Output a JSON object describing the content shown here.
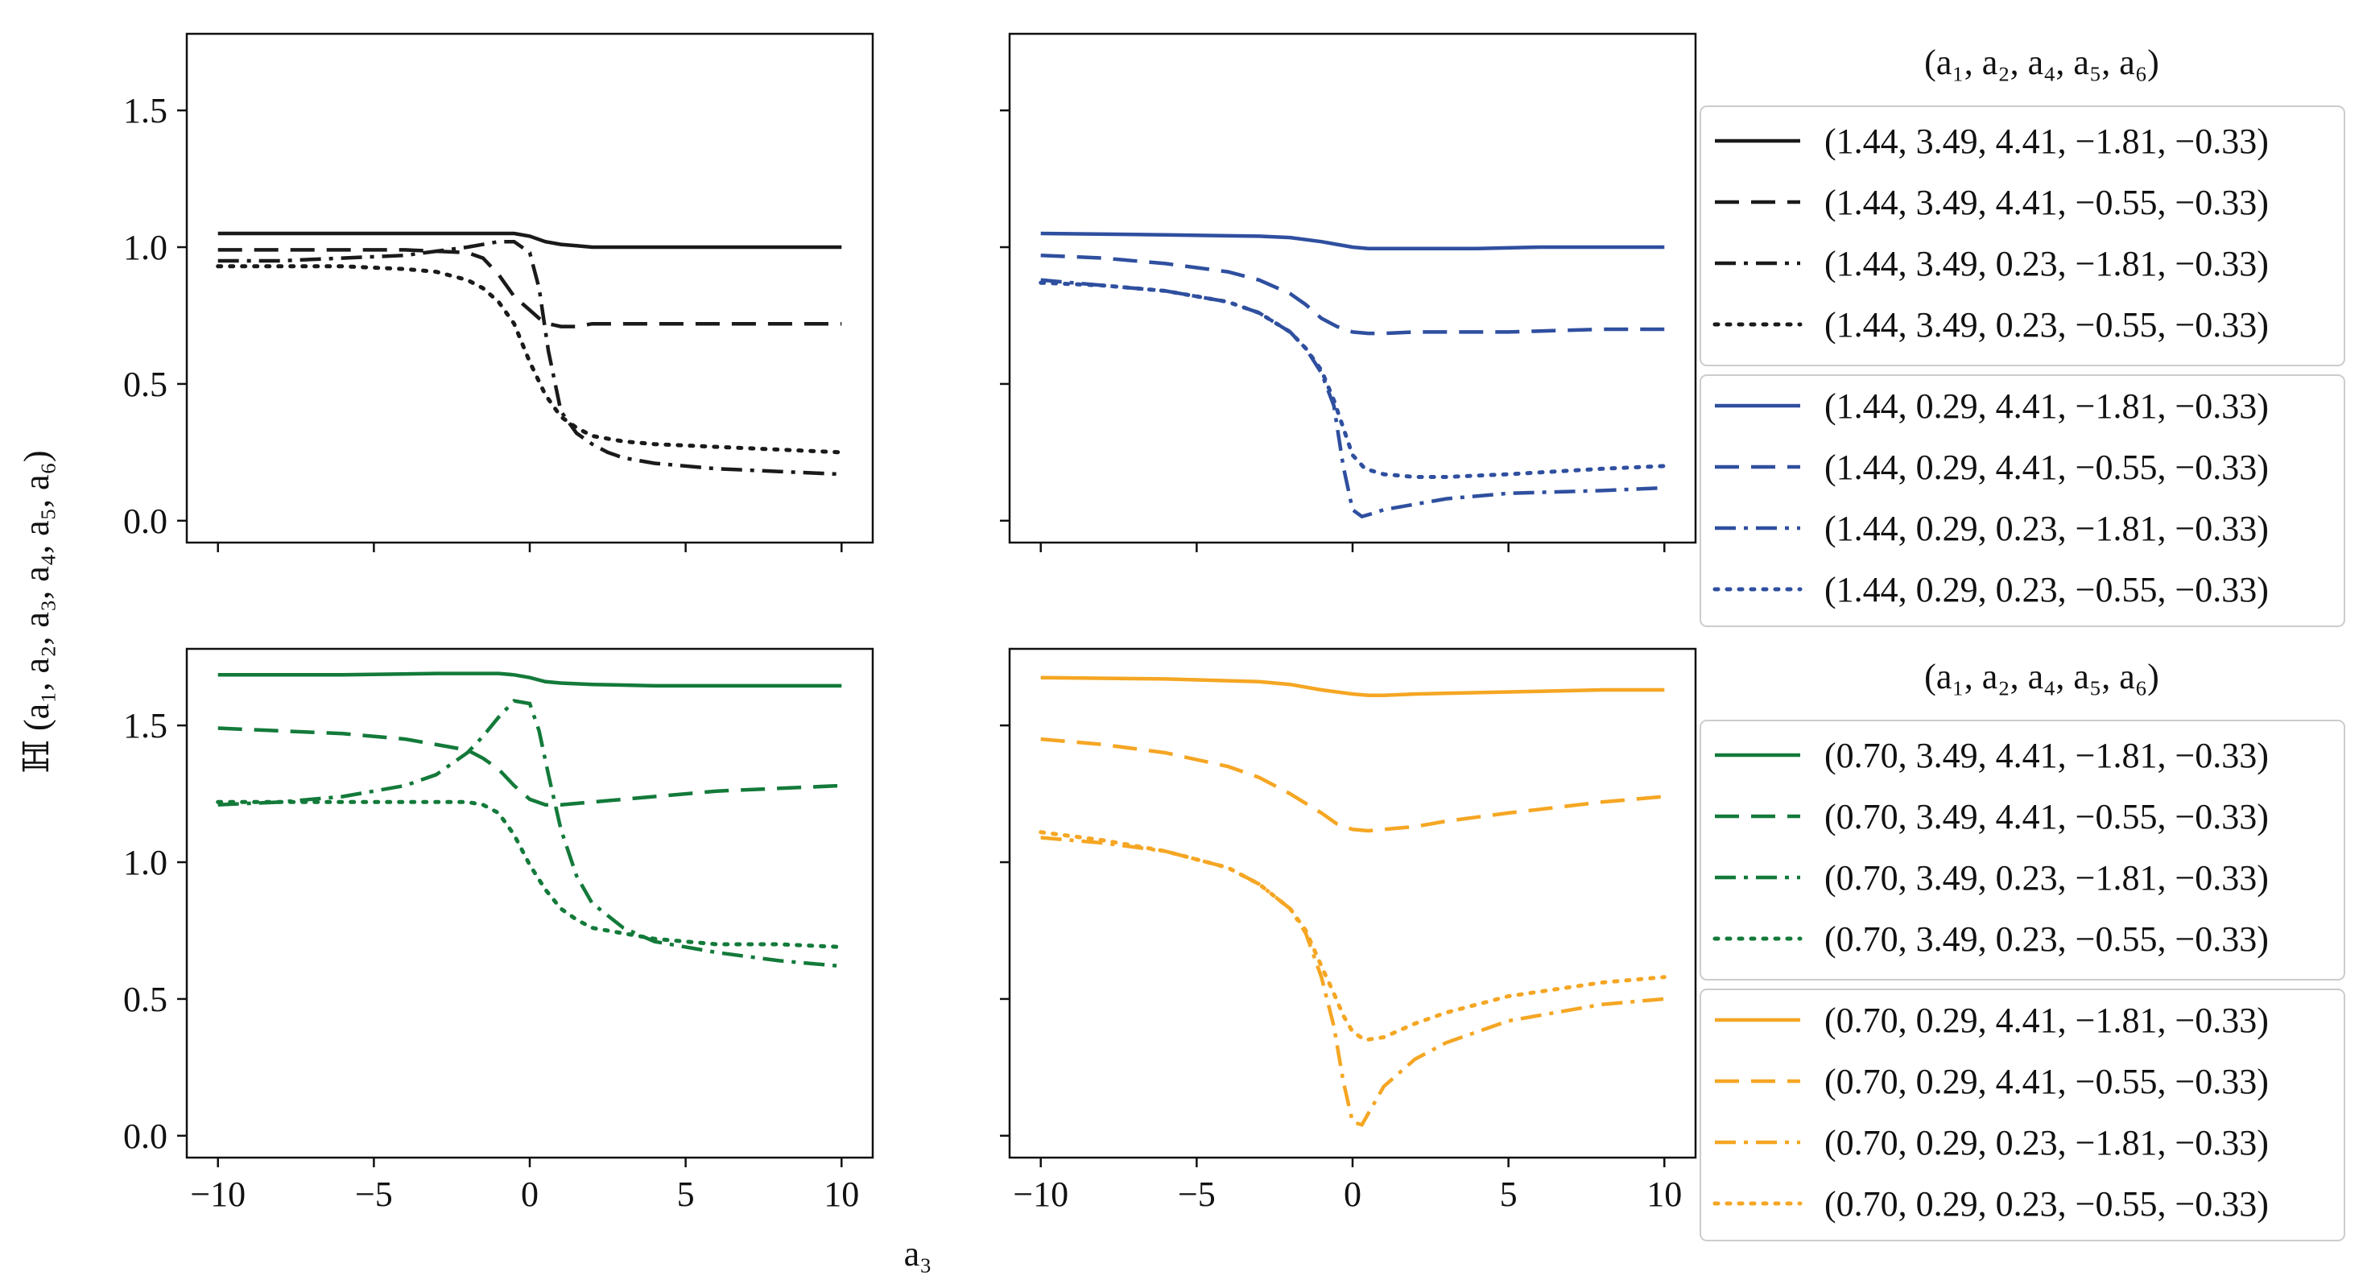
{
  "chart_data": {
    "type": "line",
    "ylabel": "ℍ (a₁, a₂, a₃, a₄, a₅, a₆)",
    "xlabel": "a₃",
    "xlim": [
      -11,
      11
    ],
    "ylim": [
      -0.08,
      1.78
    ],
    "xticks": [
      -10,
      -5,
      0,
      5,
      10
    ],
    "xtick_labels": [
      "−10",
      "−5",
      "0",
      "5",
      "10"
    ],
    "yticks": [
      0.0,
      0.5,
      1.0,
      1.5
    ],
    "ytick_labels": [
      "0.0",
      "0.5",
      "1.0",
      "1.5"
    ],
    "legend_title_top": "(a₁, a₂, a₄, a₅, a₆)",
    "legend_title_bottom": "(a₁, a₂, a₄, a₅, a₆)",
    "panels": [
      {
        "name": "top-left",
        "color": "#1a1a1a",
        "series": [
          {
            "name": "(1.44, 3.49, 4.41, −1.81, −0.33)",
            "style": "solid",
            "x": [
              -10,
              -8,
              -6,
              -4,
              -2,
              -1,
              -0.5,
              0,
              0.5,
              1,
              1.5,
              2,
              3,
              5,
              8,
              10
            ],
            "y": [
              1.05,
              1.05,
              1.05,
              1.05,
              1.05,
              1.05,
              1.05,
              1.04,
              1.02,
              1.01,
              1.005,
              1.0,
              1.0,
              1.0,
              1.0,
              1.0
            ]
          },
          {
            "name": "(1.44, 3.49, 4.41, −0.55, −0.33)",
            "style": "dashed",
            "x": [
              -10,
              -8,
              -6,
              -4,
              -2,
              -1.5,
              -1,
              -0.5,
              0,
              0.3,
              0.6,
              1,
              1.5,
              2,
              3,
              5,
              8,
              10
            ],
            "y": [
              0.99,
              0.99,
              0.99,
              0.99,
              0.98,
              0.96,
              0.9,
              0.82,
              0.77,
              0.74,
              0.72,
              0.71,
              0.71,
              0.72,
              0.72,
              0.72,
              0.72,
              0.72
            ]
          },
          {
            "name": "(1.44, 3.49, 0.23, −1.81, −0.33)",
            "style": "dashdot",
            "x": [
              -10,
              -8,
              -6,
              -4,
              -2,
              -1,
              -0.5,
              0,
              0.3,
              0.6,
              1,
              1.5,
              2,
              2.5,
              3,
              4,
              6,
              8,
              10
            ],
            "y": [
              0.95,
              0.95,
              0.96,
              0.97,
              1.0,
              1.02,
              1.02,
              0.98,
              0.85,
              0.62,
              0.4,
              0.32,
              0.28,
              0.25,
              0.23,
              0.21,
              0.19,
              0.18,
              0.17
            ]
          },
          {
            "name": "(1.44, 3.49, 0.23, −0.55, −0.33)",
            "style": "dotted",
            "x": [
              -10,
              -8,
              -6,
              -4,
              -3,
              -2,
              -1.5,
              -1,
              -0.5,
              0,
              0.5,
              1,
              1.5,
              2,
              3,
              4,
              6,
              8,
              10
            ],
            "y": [
              0.93,
              0.93,
              0.93,
              0.92,
              0.91,
              0.88,
              0.85,
              0.8,
              0.72,
              0.58,
              0.46,
              0.38,
              0.34,
              0.31,
              0.29,
              0.28,
              0.27,
              0.26,
              0.25
            ]
          }
        ]
      },
      {
        "name": "top-right",
        "color": "#2f4f9f",
        "series": [
          {
            "name": "(1.44, 0.29, 4.41, −1.81, −0.33)",
            "style": "solid",
            "x": [
              -10,
              -6,
              -3,
              -2,
              -1,
              0,
              0.5,
              1,
              2,
              4,
              6,
              8,
              10
            ],
            "y": [
              1.05,
              1.045,
              1.04,
              1.035,
              1.02,
              1.0,
              0.995,
              0.995,
              0.995,
              0.995,
              1.0,
              1.0,
              1.0
            ]
          },
          {
            "name": "(1.44, 0.29, 4.41, −0.55, −0.33)",
            "style": "dashed",
            "x": [
              -10,
              -8,
              -6,
              -4,
              -3,
              -2,
              -1.5,
              -1,
              -0.5,
              0,
              0.5,
              1,
              2,
              3,
              5,
              8,
              10
            ],
            "y": [
              0.97,
              0.96,
              0.94,
              0.91,
              0.88,
              0.83,
              0.79,
              0.74,
              0.71,
              0.69,
              0.685,
              0.685,
              0.69,
              0.69,
              0.69,
              0.7,
              0.7
            ]
          },
          {
            "name": "(1.44, 0.29, 0.23, −1.81, −0.33)",
            "style": "dashdot",
            "x": [
              -10,
              -8,
              -6,
              -4,
              -3,
              -2,
              -1.5,
              -1,
              -0.6,
              -0.3,
              0,
              0.3,
              0.6,
              1,
              2,
              3,
              5,
              8,
              10
            ],
            "y": [
              0.88,
              0.86,
              0.84,
              0.8,
              0.76,
              0.69,
              0.63,
              0.54,
              0.42,
              0.2,
              0.04,
              0.015,
              0.025,
              0.04,
              0.06,
              0.08,
              0.1,
              0.11,
              0.12
            ]
          },
          {
            "name": "(1.44, 0.29, 0.23, −0.55, −0.33)",
            "style": "dotted",
            "x": [
              -10,
              -8,
              -6,
              -4,
              -3,
              -2,
              -1.5,
              -1,
              -0.6,
              -0.3,
              0,
              0.4,
              1,
              2,
              3,
              5,
              8,
              10
            ],
            "y": [
              0.87,
              0.86,
              0.84,
              0.8,
              0.76,
              0.69,
              0.63,
              0.55,
              0.44,
              0.34,
              0.24,
              0.19,
              0.17,
              0.16,
              0.16,
              0.17,
              0.19,
              0.2
            ]
          }
        ]
      },
      {
        "name": "bottom-left",
        "color": "#137a3a",
        "series": [
          {
            "name": "(0.70, 3.49, 4.41, −1.81, −0.33)",
            "style": "solid",
            "x": [
              -10,
              -6,
              -3,
              -1,
              -0.5,
              0,
              0.5,
              1,
              2,
              4,
              6,
              8,
              10
            ],
            "y": [
              1.685,
              1.685,
              1.69,
              1.69,
              1.685,
              1.675,
              1.66,
              1.655,
              1.65,
              1.645,
              1.645,
              1.645,
              1.645
            ]
          },
          {
            "name": "(0.70, 3.49, 4.41, −0.55, −0.33)",
            "style": "dashed",
            "x": [
              -10,
              -8,
              -6,
              -4,
              -3,
              -2,
              -1.5,
              -1,
              -0.5,
              0,
              0.5,
              1,
              2,
              4,
              6,
              8,
              10
            ],
            "y": [
              1.49,
              1.48,
              1.47,
              1.45,
              1.43,
              1.41,
              1.38,
              1.34,
              1.28,
              1.23,
              1.21,
              1.21,
              1.22,
              1.24,
              1.26,
              1.27,
              1.28
            ]
          },
          {
            "name": "(0.70, 3.49, 0.23, −1.81, −0.33)",
            "style": "dashdot",
            "x": [
              -10,
              -8,
              -6,
              -4,
              -3,
              -2,
              -1.5,
              -1,
              -0.5,
              0,
              0.3,
              0.6,
              1,
              1.5,
              2,
              3,
              4,
              6,
              8,
              10
            ],
            "y": [
              1.21,
              1.22,
              1.24,
              1.28,
              1.32,
              1.4,
              1.46,
              1.53,
              1.59,
              1.58,
              1.48,
              1.32,
              1.12,
              0.95,
              0.85,
              0.76,
              0.71,
              0.67,
              0.64,
              0.62
            ]
          },
          {
            "name": "(0.70, 3.49, 0.23, −0.55, −0.33)",
            "style": "dotted",
            "x": [
              -10,
              -8,
              -6,
              -4,
              -3,
              -2,
              -1.5,
              -1,
              -0.5,
              0,
              0.5,
              1,
              1.5,
              2,
              3,
              4,
              6,
              8,
              10
            ],
            "y": [
              1.22,
              1.22,
              1.22,
              1.22,
              1.22,
              1.22,
              1.21,
              1.18,
              1.1,
              0.99,
              0.9,
              0.83,
              0.79,
              0.76,
              0.74,
              0.72,
              0.7,
              0.7,
              0.69
            ]
          }
        ]
      },
      {
        "name": "bottom-right",
        "color": "#f5a623",
        "series": [
          {
            "name": "(0.70, 0.29, 4.41, −1.81, −0.33)",
            "style": "solid",
            "x": [
              -10,
              -6,
              -3,
              -2,
              -1,
              0,
              0.5,
              1,
              2,
              4,
              6,
              8,
              10
            ],
            "y": [
              1.675,
              1.67,
              1.66,
              1.65,
              1.63,
              1.615,
              1.61,
              1.61,
              1.615,
              1.62,
              1.625,
              1.63,
              1.63
            ]
          },
          {
            "name": "(0.70, 0.29, 4.41, −0.55, −0.33)",
            "style": "dashed",
            "x": [
              -10,
              -8,
              -6,
              -4,
              -3,
              -2,
              -1,
              -0.5,
              0,
              0.5,
              1,
              2,
              3,
              5,
              8,
              10
            ],
            "y": [
              1.45,
              1.43,
              1.4,
              1.35,
              1.31,
              1.25,
              1.18,
              1.14,
              1.12,
              1.115,
              1.12,
              1.13,
              1.15,
              1.18,
              1.22,
              1.24
            ]
          },
          {
            "name": "(0.70, 0.29, 0.23, −1.81, −0.33)",
            "style": "dashdot",
            "x": [
              -10,
              -8,
              -6,
              -4,
              -3,
              -2,
              -1.5,
              -1,
              -0.6,
              -0.3,
              0,
              0.3,
              0.6,
              1,
              2,
              3,
              5,
              8,
              10
            ],
            "y": [
              1.09,
              1.07,
              1.04,
              0.98,
              0.92,
              0.83,
              0.74,
              0.58,
              0.4,
              0.2,
              0.05,
              0.04,
              0.1,
              0.18,
              0.28,
              0.34,
              0.42,
              0.48,
              0.5
            ]
          },
          {
            "name": "(0.70, 0.29, 0.23, −0.55, −0.33)",
            "style": "dotted",
            "x": [
              -10,
              -8,
              -6,
              -4,
              -3,
              -2,
              -1.5,
              -1,
              -0.6,
              -0.3,
              0,
              0.4,
              1,
              2,
              3,
              5,
              8,
              10
            ],
            "y": [
              1.11,
              1.08,
              1.04,
              0.98,
              0.92,
              0.83,
              0.75,
              0.62,
              0.52,
              0.44,
              0.38,
              0.35,
              0.36,
              0.41,
              0.45,
              0.51,
              0.56,
              0.58
            ]
          }
        ]
      }
    ]
  }
}
